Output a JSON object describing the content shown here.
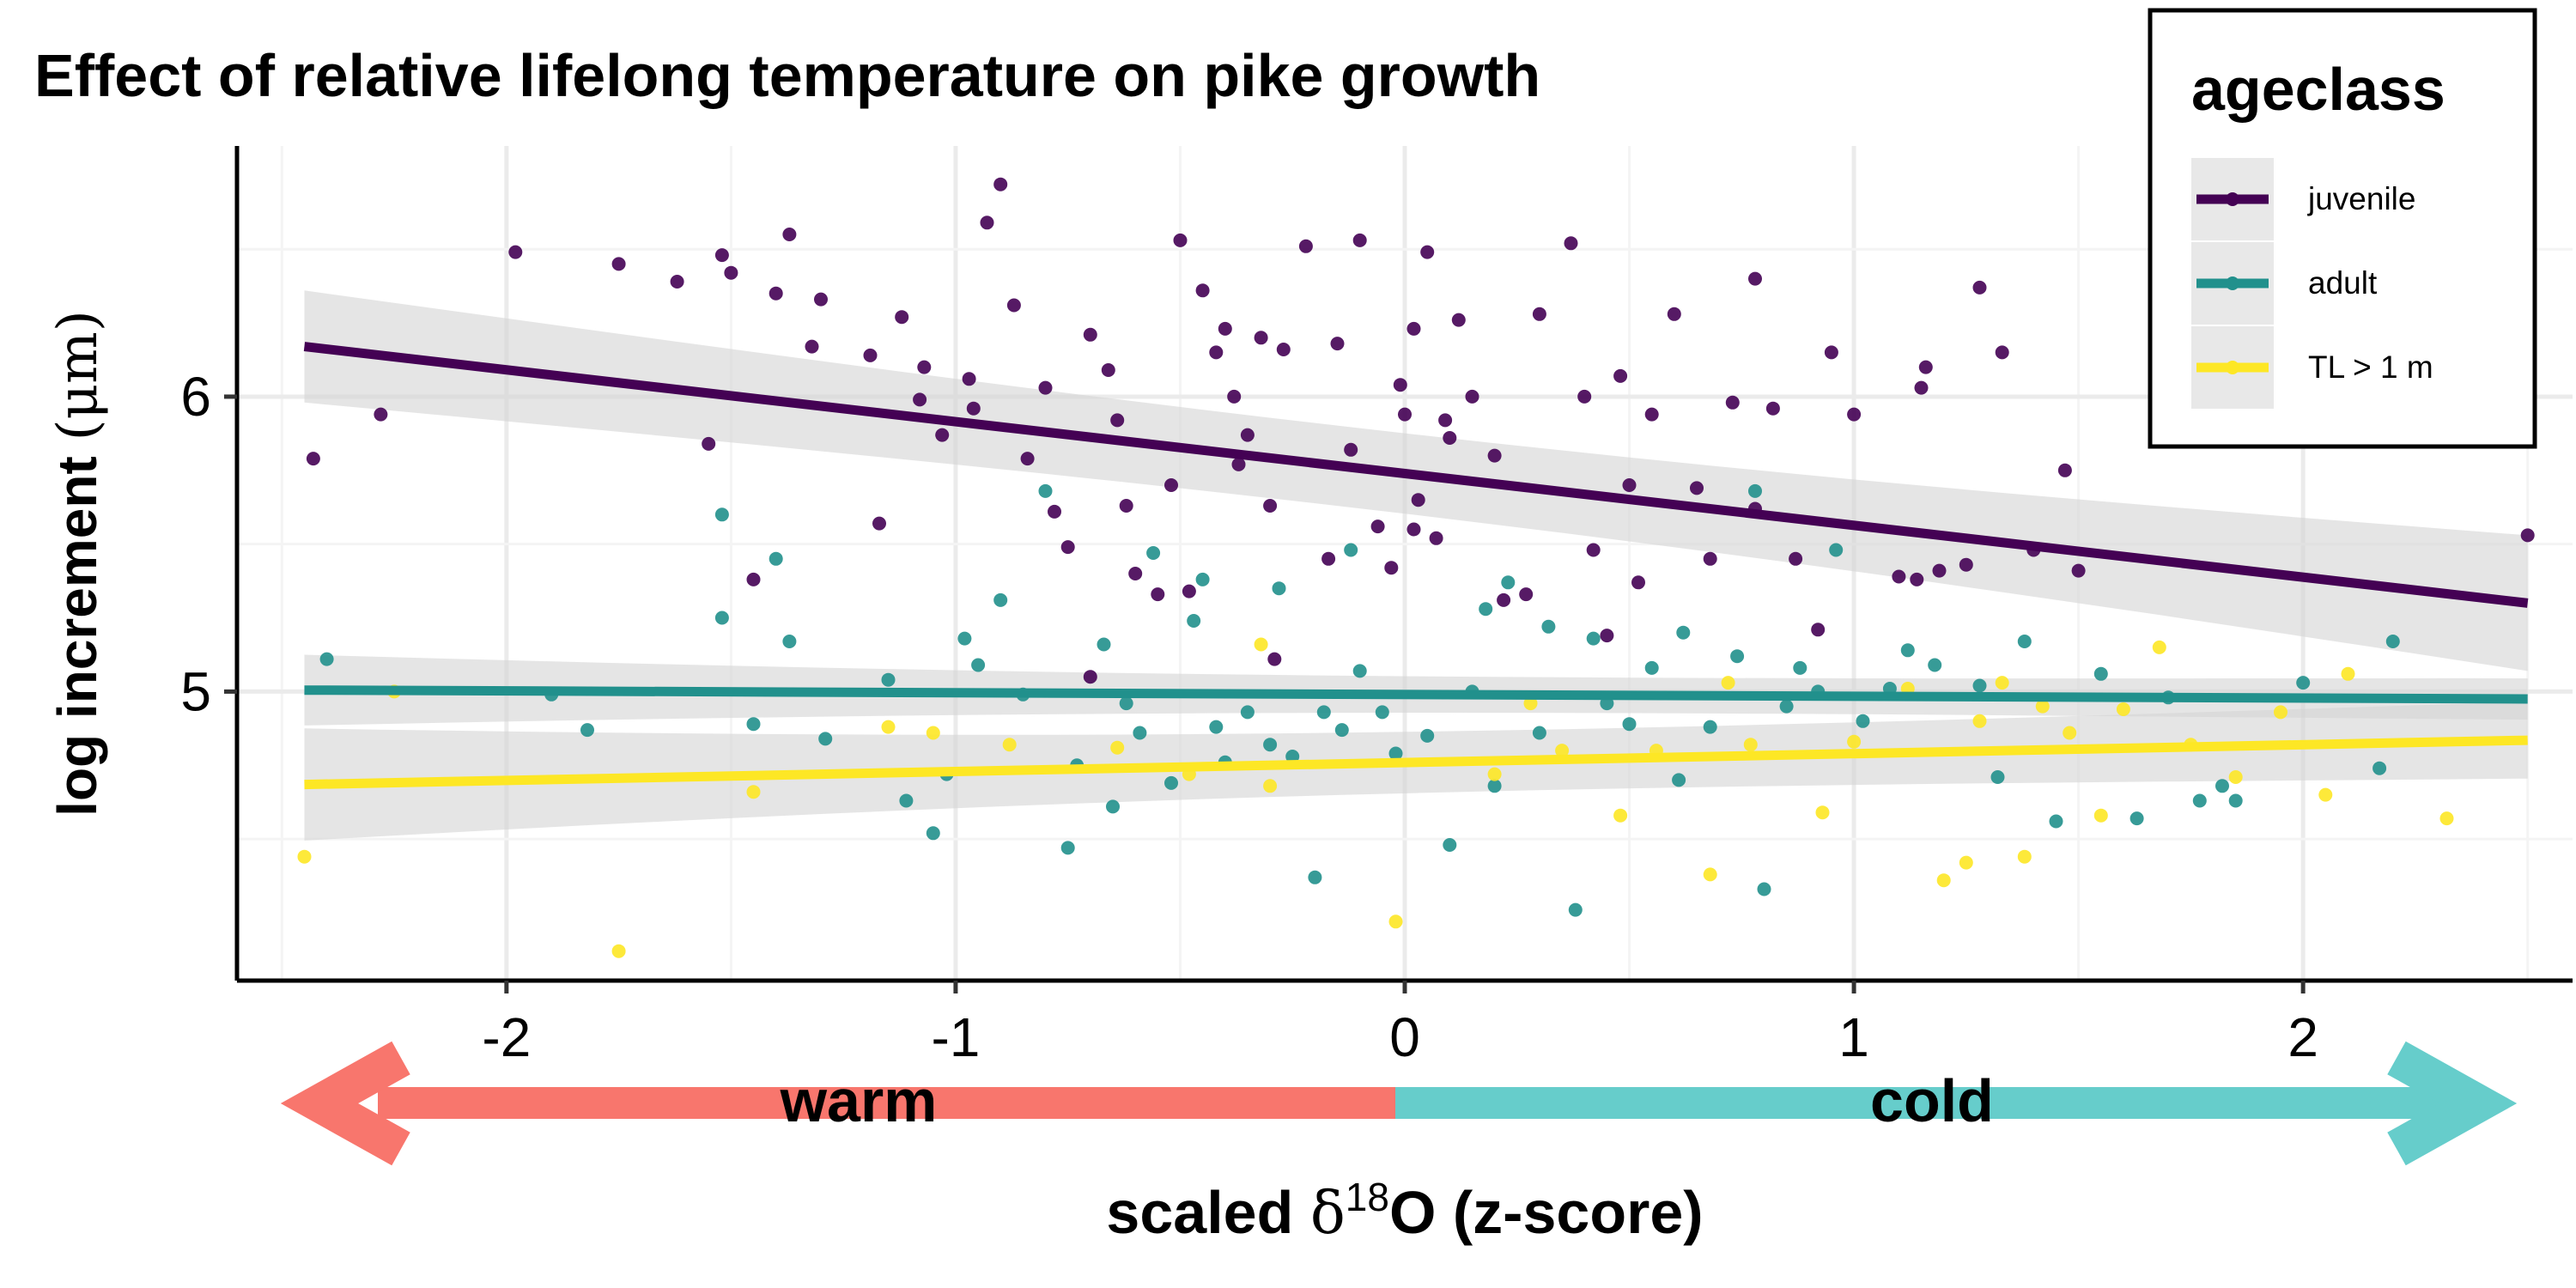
{
  "chart_data": {
    "type": "scatter",
    "title": "Effect of relative lifelong temperature on pike growth",
    "ylabel_main": "log increment ",
    "ylabel_unit": "(μm)",
    "xlabel_pre": "scaled ",
    "xlabel_delta": "δ",
    "xlabel_sup": "18",
    "xlabel_o": "O ",
    "xlabel_post": "(z-score)",
    "xlim": [
      -2.6,
      2.6
    ],
    "ylim": [
      4.02,
      6.85
    ],
    "xticks": [
      -2,
      -1,
      0,
      1,
      2
    ],
    "xtick_labels": [
      "-2",
      "-1",
      "0",
      "1",
      "2"
    ],
    "yticks": [
      5,
      6
    ],
    "ytick_labels": [
      "5",
      "6"
    ],
    "grid": true,
    "legend": {
      "title": "ageclass",
      "position": "top-right",
      "entries": [
        "juvenile",
        "adult",
        "TL > 1 m"
      ]
    },
    "arrow_labels": {
      "left": "warm",
      "right": "cold"
    },
    "colors": {
      "juvenile": "#440154",
      "adult": "#21908C",
      "large": "#FDE725",
      "warm": "#F8766D",
      "cold": "#66CDCB",
      "band": "#D3D3D3"
    },
    "series": [
      {
        "name": "juvenile",
        "color": "#440154",
        "trend": {
          "x0": -2.45,
          "y0": 6.17,
          "x1": 2.5,
          "y1": 5.3,
          "se_start": 0.19,
          "se_end": 0.23
        },
        "points": [
          [
            -2.43,
            5.79
          ],
          [
            -2.28,
            5.94
          ],
          [
            -1.98,
            6.49
          ],
          [
            -1.75,
            6.45
          ],
          [
            -1.62,
            6.39
          ],
          [
            -1.55,
            5.84
          ],
          [
            -1.52,
            6.48
          ],
          [
            -1.5,
            6.42
          ],
          [
            -1.45,
            5.38
          ],
          [
            -1.4,
            6.35
          ],
          [
            -1.37,
            6.55
          ],
          [
            -1.32,
            6.17
          ],
          [
            -1.3,
            6.33
          ],
          [
            -1.19,
            6.14
          ],
          [
            -1.12,
            6.27
          ],
          [
            -1.08,
            5.99
          ],
          [
            -1.07,
            6.1
          ],
          [
            -1.03,
            5.87
          ],
          [
            -0.97,
            6.06
          ],
          [
            -0.93,
            6.59
          ],
          [
            -0.9,
            6.72
          ],
          [
            -0.87,
            6.31
          ],
          [
            -0.84,
            5.79
          ],
          [
            -0.8,
            6.03
          ],
          [
            -0.75,
            5.49
          ],
          [
            -0.7,
            6.21
          ],
          [
            -0.66,
            6.09
          ],
          [
            -0.64,
            5.92
          ],
          [
            -0.6,
            5.4
          ],
          [
            -0.52,
            5.7
          ],
          [
            -0.5,
            6.53
          ],
          [
            -0.45,
            6.36
          ],
          [
            -0.42,
            6.15
          ],
          [
            -0.4,
            6.23
          ],
          [
            -0.38,
            6.0
          ],
          [
            -0.37,
            5.77
          ],
          [
            -0.32,
            6.2
          ],
          [
            -0.3,
            5.63
          ],
          [
            -0.29,
            5.11
          ],
          [
            -0.27,
            6.16
          ],
          [
            -0.22,
            6.51
          ],
          [
            -0.17,
            5.45
          ],
          [
            -0.15,
            6.18
          ],
          [
            -0.1,
            6.53
          ],
          [
            -0.06,
            5.56
          ],
          [
            -0.03,
            5.42
          ],
          [
            -0.01,
            6.04
          ],
          [
            0.0,
            5.94
          ],
          [
            0.02,
            6.23
          ],
          [
            0.03,
            5.65
          ],
          [
            0.05,
            6.49
          ],
          [
            0.07,
            5.52
          ],
          [
            0.09,
            5.92
          ],
          [
            0.12,
            6.26
          ],
          [
            0.15,
            6.0
          ],
          [
            0.2,
            5.8
          ],
          [
            0.22,
            5.31
          ],
          [
            0.3,
            6.28
          ],
          [
            0.37,
            6.52
          ],
          [
            0.4,
            6.0
          ],
          [
            0.42,
            5.48
          ],
          [
            0.45,
            5.19
          ],
          [
            0.48,
            6.07
          ],
          [
            0.5,
            5.7
          ],
          [
            0.55,
            5.94
          ],
          [
            0.6,
            6.28
          ],
          [
            0.65,
            5.69
          ],
          [
            0.68,
            5.45
          ],
          [
            0.73,
            5.98
          ],
          [
            0.78,
            5.62
          ],
          [
            0.82,
            5.96
          ],
          [
            0.87,
            5.45
          ],
          [
            0.92,
            5.21
          ],
          [
            0.95,
            6.15
          ],
          [
            1.0,
            5.94
          ],
          [
            1.1,
            5.39
          ],
          [
            1.14,
            5.38
          ],
          [
            1.16,
            6.1
          ],
          [
            1.19,
            5.41
          ],
          [
            1.25,
            5.43
          ],
          [
            1.28,
            6.37
          ],
          [
            1.33,
            6.15
          ],
          [
            1.4,
            5.48
          ],
          [
            1.47,
            5.75
          ],
          [
            1.5,
            5.41
          ],
          [
            2.5,
            5.53
          ],
          [
            -0.96,
            5.96
          ],
          [
            -0.78,
            5.61
          ],
          [
            -0.35,
            5.87
          ],
          [
            0.27,
            5.33
          ],
          [
            -1.17,
            5.57
          ],
          [
            -0.55,
            5.33
          ],
          [
            0.78,
            6.4
          ],
          [
            0.52,
            5.37
          ],
          [
            -0.7,
            5.05
          ],
          [
            0.1,
            5.86
          ],
          [
            -0.12,
            5.82
          ],
          [
            -0.62,
            5.63
          ],
          [
            1.15,
            6.03
          ],
          [
            -0.48,
            5.34
          ],
          [
            0.02,
            5.55
          ]
        ]
      },
      {
        "name": "adult",
        "color": "#21908C",
        "trend": {
          "x0": -2.45,
          "y0": 5.005,
          "x1": 2.5,
          "y1": 4.975,
          "se_start": 0.12,
          "se_end": 0.07
        },
        "points": [
          [
            -2.4,
            5.11
          ],
          [
            -1.9,
            4.99
          ],
          [
            -1.82,
            4.87
          ],
          [
            -1.52,
            5.6
          ],
          [
            -1.45,
            4.89
          ],
          [
            -1.4,
            5.45
          ],
          [
            -1.37,
            5.17
          ],
          [
            -1.29,
            4.84
          ],
          [
            -1.15,
            5.04
          ],
          [
            -1.11,
            4.63
          ],
          [
            -1.02,
            4.72
          ],
          [
            -0.98,
            5.18
          ],
          [
            -0.95,
            5.09
          ],
          [
            -0.9,
            5.31
          ],
          [
            -0.85,
            4.99
          ],
          [
            -0.8,
            5.68
          ],
          [
            -0.73,
            4.75
          ],
          [
            -0.67,
            5.16
          ],
          [
            -0.65,
            4.61
          ],
          [
            -0.59,
            4.86
          ],
          [
            -0.56,
            5.47
          ],
          [
            -0.52,
            4.69
          ],
          [
            -0.47,
            5.24
          ],
          [
            -0.45,
            5.38
          ],
          [
            -0.42,
            4.88
          ],
          [
            -0.4,
            4.76
          ],
          [
            -0.35,
            4.93
          ],
          [
            -0.3,
            4.82
          ],
          [
            -0.25,
            4.78
          ],
          [
            -0.2,
            4.37
          ],
          [
            -0.18,
            4.93
          ],
          [
            -0.14,
            4.87
          ],
          [
            -0.12,
            5.48
          ],
          [
            -0.1,
            5.07
          ],
          [
            -0.05,
            4.93
          ],
          [
            -0.02,
            4.79
          ],
          [
            0.05,
            4.85
          ],
          [
            0.1,
            4.48
          ],
          [
            0.15,
            5.0
          ],
          [
            0.2,
            4.68
          ],
          [
            0.23,
            5.37
          ],
          [
            0.3,
            4.86
          ],
          [
            0.32,
            5.22
          ],
          [
            0.38,
            4.26
          ],
          [
            0.45,
            4.96
          ],
          [
            0.5,
            4.89
          ],
          [
            0.55,
            5.08
          ],
          [
            0.61,
            4.7
          ],
          [
            0.68,
            4.88
          ],
          [
            0.74,
            5.12
          ],
          [
            0.8,
            4.33
          ],
          [
            0.85,
            4.95
          ],
          [
            0.92,
            5.0
          ],
          [
            0.96,
            5.48
          ],
          [
            1.02,
            4.9
          ],
          [
            1.12,
            5.14
          ],
          [
            1.18,
            5.09
          ],
          [
            1.28,
            5.02
          ],
          [
            1.32,
            4.71
          ],
          [
            1.45,
            4.56
          ],
          [
            1.55,
            5.06
          ],
          [
            1.63,
            4.57
          ],
          [
            1.7,
            4.98
          ],
          [
            1.77,
            4.63
          ],
          [
            1.82,
            4.68
          ],
          [
            1.85,
            4.63
          ],
          [
            2.0,
            5.03
          ],
          [
            2.2,
            5.17
          ],
          [
            2.17,
            4.74
          ],
          [
            -1.52,
            5.25
          ],
          [
            -0.62,
            4.96
          ],
          [
            0.42,
            5.18
          ],
          [
            1.08,
            5.01
          ],
          [
            -0.28,
            5.35
          ],
          [
            0.78,
            5.68
          ],
          [
            -1.05,
            4.52
          ],
          [
            0.62,
            5.2
          ],
          [
            1.38,
            5.17
          ],
          [
            -0.75,
            4.47
          ],
          [
            0.18,
            5.28
          ],
          [
            0.88,
            5.08
          ]
        ]
      },
      {
        "name": "TL > 1 m",
        "color": "#FDE725",
        "trend": {
          "x0": -2.45,
          "y0": 4.685,
          "x1": 2.5,
          "y1": 4.835,
          "se_start": 0.19,
          "se_end": 0.13
        },
        "points": [
          [
            -2.45,
            4.44
          ],
          [
            -2.25,
            5.0
          ],
          [
            -1.75,
            4.12
          ],
          [
            -1.45,
            4.66
          ],
          [
            -1.15,
            4.88
          ],
          [
            -1.05,
            4.86
          ],
          [
            -0.88,
            4.82
          ],
          [
            -0.48,
            4.72
          ],
          [
            -0.32,
            5.16
          ],
          [
            -0.3,
            4.68
          ],
          [
            -0.02,
            4.22
          ],
          [
            0.2,
            4.72
          ],
          [
            0.28,
            4.96
          ],
          [
            0.48,
            4.58
          ],
          [
            0.56,
            4.8
          ],
          [
            0.68,
            4.38
          ],
          [
            0.72,
            5.03
          ],
          [
            0.77,
            4.82
          ],
          [
            0.93,
            4.59
          ],
          [
            1.12,
            5.01
          ],
          [
            1.2,
            4.36
          ],
          [
            1.25,
            4.42
          ],
          [
            1.28,
            4.9
          ],
          [
            1.33,
            5.03
          ],
          [
            1.38,
            4.44
          ],
          [
            1.42,
            4.95
          ],
          [
            1.48,
            4.86
          ],
          [
            1.55,
            4.58
          ],
          [
            1.6,
            4.94
          ],
          [
            1.68,
            5.15
          ],
          [
            1.75,
            4.82
          ],
          [
            1.85,
            4.71
          ],
          [
            1.95,
            4.93
          ],
          [
            2.05,
            4.65
          ],
          [
            2.1,
            5.06
          ],
          [
            2.32,
            4.57
          ],
          [
            -0.64,
            4.81
          ],
          [
            0.35,
            4.8
          ],
          [
            1.0,
            4.83
          ]
        ]
      }
    ]
  }
}
